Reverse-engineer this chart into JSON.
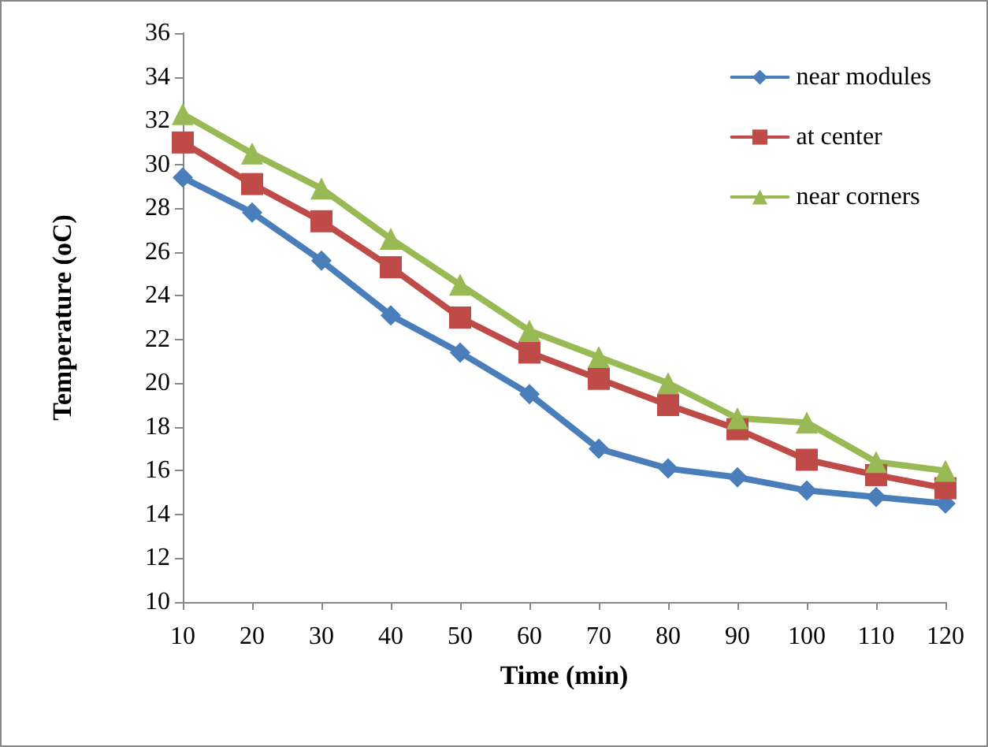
{
  "chart_data": {
    "type": "line",
    "xlabel": "Time (min)",
    "ylabel": "Temperature (oC)",
    "categories": [
      "10",
      "20",
      "30",
      "40",
      "50",
      "60",
      "70",
      "80",
      "90",
      "100",
      "110",
      "120"
    ],
    "series": [
      {
        "name": "near modules",
        "color": "#4a7ebb",
        "marker": "diamond",
        "values": [
          29.4,
          27.8,
          25.6,
          23.1,
          21.4,
          19.5,
          17.0,
          16.1,
          15.7,
          15.1,
          14.8,
          14.5
        ]
      },
      {
        "name": "at center",
        "color": "#be4b48",
        "marker": "square",
        "values": [
          31.0,
          29.1,
          27.4,
          25.3,
          23.0,
          21.4,
          20.2,
          19.0,
          17.9,
          16.5,
          15.8,
          15.2
        ]
      },
      {
        "name": "near corners",
        "color": "#98b954",
        "marker": "triangle",
        "values": [
          32.3,
          30.5,
          28.9,
          26.6,
          24.5,
          22.4,
          21.2,
          20.0,
          18.4,
          18.2,
          16.4,
          16.0
        ]
      }
    ],
    "ylim": [
      10,
      36
    ],
    "yticks": [
      10,
      12,
      14,
      16,
      18,
      20,
      22,
      24,
      26,
      28,
      30,
      32,
      34,
      36
    ],
    "grid": false,
    "legend": "top right",
    "line_style": "solid"
  }
}
